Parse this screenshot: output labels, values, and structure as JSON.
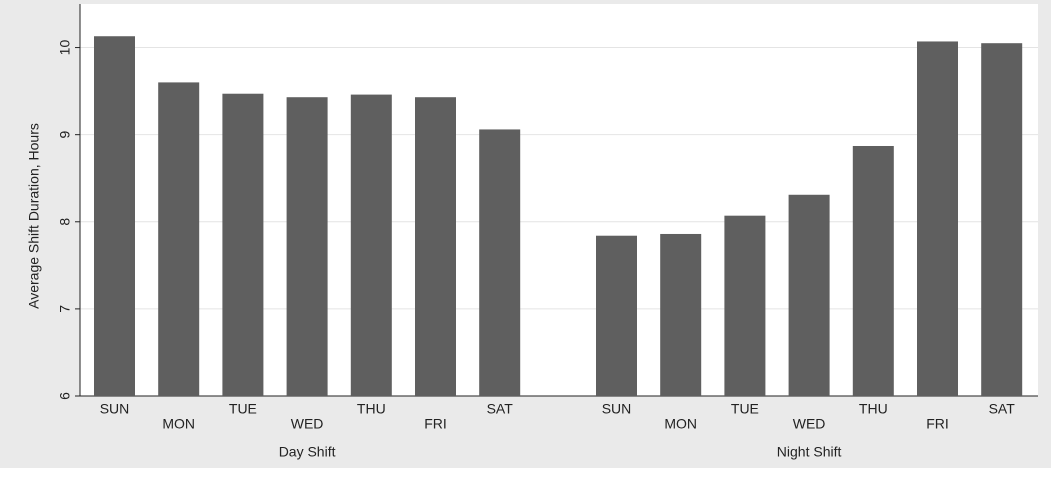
{
  "chart_data": {
    "type": "bar",
    "y_label": "Average Shift Duration, Hours",
    "groups": [
      {
        "name": "Day Shift",
        "categories": [
          "SUN",
          "MON",
          "TUE",
          "WED",
          "THU",
          "FRI",
          "SAT"
        ],
        "values": [
          10.13,
          9.6,
          9.47,
          9.43,
          9.46,
          9.43,
          9.06
        ]
      },
      {
        "name": "Night Shift",
        "categories": [
          "SUN",
          "MON",
          "TUE",
          "WED",
          "THU",
          "FRI",
          "SAT"
        ],
        "values": [
          7.84,
          7.86,
          8.07,
          8.31,
          8.87,
          10.07,
          10.05
        ]
      }
    ],
    "color": "#5f5f5f",
    "ylim": [
      6,
      10.5
    ],
    "yticks": [
      6,
      7,
      8,
      9,
      10
    ],
    "grid": true
  }
}
